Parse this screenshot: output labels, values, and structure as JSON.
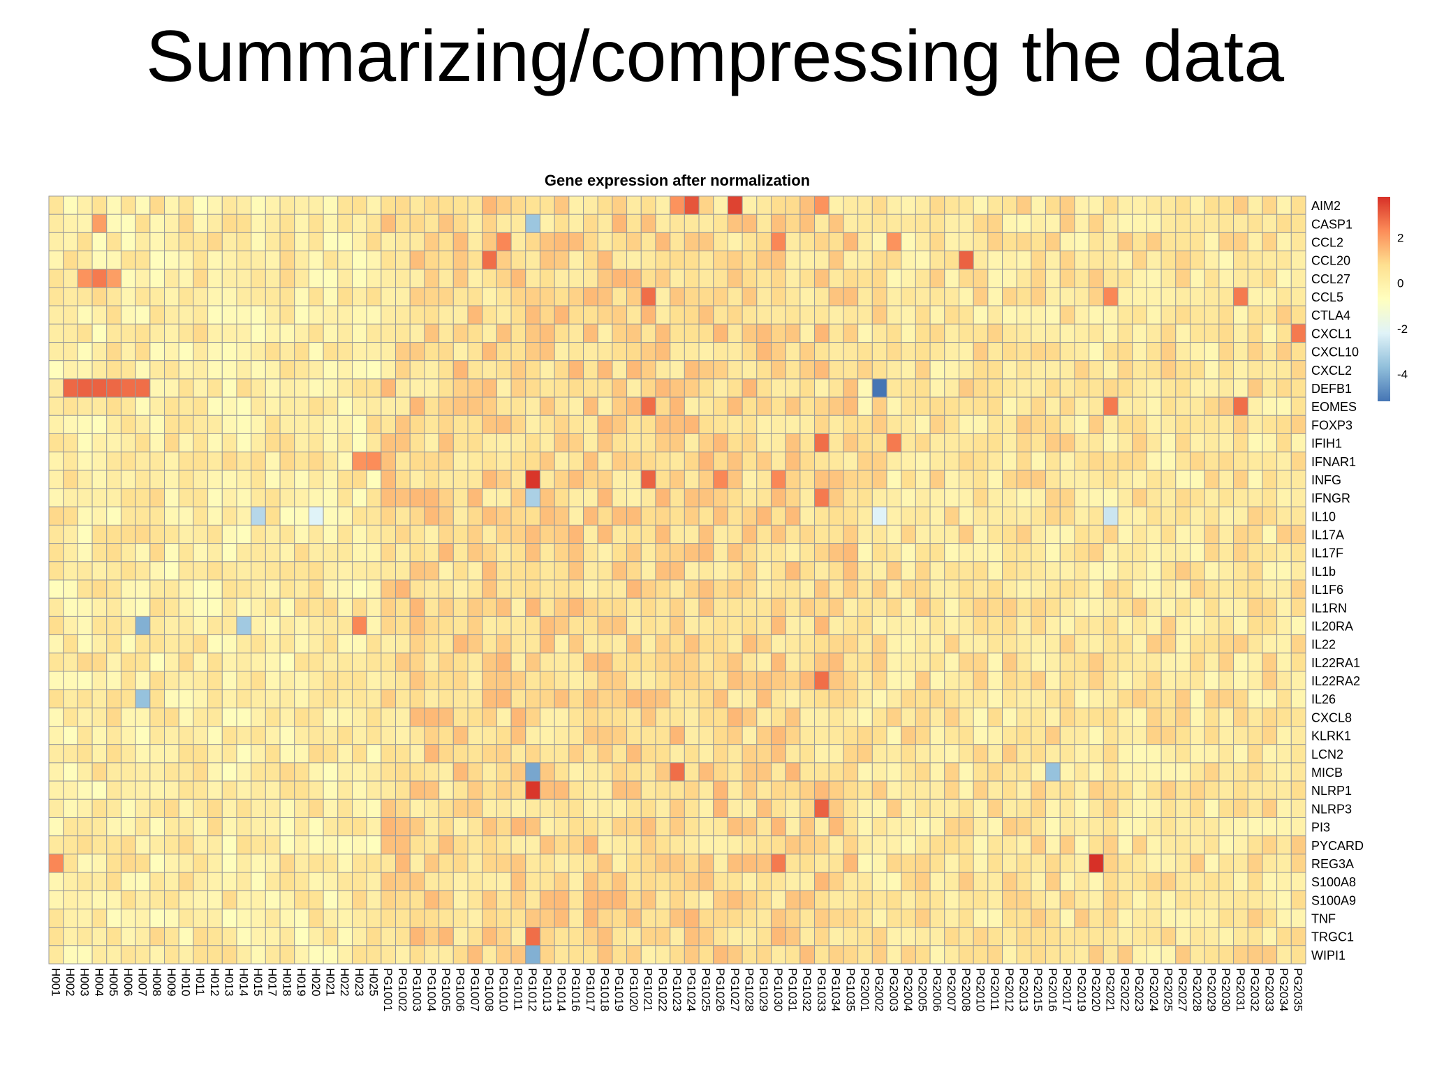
{
  "slide": {
    "title": "Summarizing/compressing the data"
  },
  "chart_data": {
    "type": "heatmap",
    "title": "Gene expression after normalization",
    "rows": [
      "AIM2",
      "CASP1",
      "CCL2",
      "CCL20",
      "CCL27",
      "CCL5",
      "CTLA4",
      "CXCL1",
      "CXCL10",
      "CXCL2",
      "DEFB1",
      "EOMES",
      "FOXP3",
      "IFIH1",
      "IFNAR1",
      "INFG",
      "IFNGR",
      "IL10",
      "IL17A",
      "IL17F",
      "IL1b",
      "IL1F6",
      "IL1RN",
      "IL20RA",
      "IL22",
      "IL22RA1",
      "IL22RA2",
      "IL26",
      "CXCL8",
      "KLRK1",
      "LCN2",
      "MICB",
      "NLRP1",
      "NLRP3",
      "PI3",
      "PYCARD",
      "REG3A",
      "S100A8",
      "S100A9",
      "TNF",
      "TRGC1",
      "WIPI1"
    ],
    "columns": [
      "H001",
      "H002",
      "H003",
      "H004",
      "H005",
      "H006",
      "H007",
      "H008",
      "H009",
      "H010",
      "H011",
      "H012",
      "H013",
      "H014",
      "H015",
      "H017",
      "H018",
      "H019",
      "H020",
      "H021",
      "H022",
      "H023",
      "H025",
      "PG1001",
      "PG1002",
      "PG1003",
      "PG1004",
      "PG1005",
      "PG1006",
      "PG1007",
      "PG1008",
      "PG1010",
      "PG1011",
      "PG1012",
      "PG1013",
      "PG1014",
      "PG1016",
      "PG1017",
      "PG1018",
      "PG1019",
      "PG1020",
      "PG1021",
      "PG1022",
      "PG1023",
      "PG1024",
      "PG1025",
      "PG1026",
      "PG1027",
      "PG1028",
      "PG1029",
      "PG1030",
      "PG1031",
      "PG1032",
      "PG1033",
      "PG1034",
      "PG1035",
      "PG2001",
      "PG2002",
      "PG2003",
      "PG2004",
      "PG2005",
      "PG2006",
      "PG2007",
      "PG2008",
      "PG2010",
      "PG2011",
      "PG2012",
      "PG2013",
      "PG2015",
      "PG2016",
      "PG2017",
      "PG2019",
      "PG2020",
      "PG2021",
      "PG2022",
      "PG2023",
      "PG2024",
      "PG2025",
      "PG2027",
      "PG2028",
      "PG2029",
      "PG2030",
      "PG2031",
      "PG2032",
      "PG2033",
      "PG2034",
      "PG2035"
    ],
    "base_level": 0.4,
    "notable_values": [
      {
        "row": "AIM2",
        "column": "PG1024",
        "value": 3.2
      },
      {
        "row": "AIM2",
        "column": "PG1027",
        "value": 3.5
      },
      {
        "row": "AIM2",
        "column": "PG1023",
        "value": 2.2
      },
      {
        "row": "AIM2",
        "column": "PG1033",
        "value": 2.2
      },
      {
        "row": "CASP1",
        "column": "H004",
        "value": 2.0
      },
      {
        "row": "CASP1",
        "column": "PG1012",
        "value": -3.5
      },
      {
        "row": "CCL2",
        "column": "PG1010",
        "value": 2.4
      },
      {
        "row": "CCL2",
        "column": "PG1030",
        "value": 2.4
      },
      {
        "row": "CCL2",
        "column": "PG2003",
        "value": 2.2
      },
      {
        "row": "CCL20",
        "column": "PG1008",
        "value": 2.8
      },
      {
        "row": "CCL20",
        "column": "PG2008",
        "value": 3.0
      },
      {
        "row": "CCL27",
        "column": "H003",
        "value": 2.2
      },
      {
        "row": "CCL27",
        "column": "H004",
        "value": 2.6
      },
      {
        "row": "CCL27",
        "column": "H005",
        "value": 2.0
      },
      {
        "row": "CCL5",
        "column": "PG1021",
        "value": 2.8
      },
      {
        "row": "CCL5",
        "column": "PG2021",
        "value": 2.4
      },
      {
        "row": "CCL5",
        "column": "PG2031",
        "value": 2.6
      },
      {
        "row": "CXCL1",
        "column": "PG2035",
        "value": 2.6
      },
      {
        "row": "DEFB1",
        "column": "H002",
        "value": 2.9
      },
      {
        "row": "DEFB1",
        "column": "H003",
        "value": 3.0
      },
      {
        "row": "DEFB1",
        "column": "H004",
        "value": 3.0
      },
      {
        "row": "DEFB1",
        "column": "H005",
        "value": 2.9
      },
      {
        "row": "DEFB1",
        "column": "H006",
        "value": 2.8
      },
      {
        "row": "DEFB1",
        "column": "H007",
        "value": 2.8
      },
      {
        "row": "DEFB1",
        "column": "PG2002",
        "value": -5.2
      },
      {
        "row": "EOMES",
        "column": "PG1021",
        "value": 2.8
      },
      {
        "row": "EOMES",
        "column": "PG2021",
        "value": 2.6
      },
      {
        "row": "EOMES",
        "column": "PG2031",
        "value": 2.8
      },
      {
        "row": "IFIH1",
        "column": "PG1033",
        "value": 2.8
      },
      {
        "row": "IFIH1",
        "column": "PG2003",
        "value": 2.6
      },
      {
        "row": "IFNAR1",
        "column": "H023",
        "value": 2.2
      },
      {
        "row": "IFNAR1",
        "column": "H025",
        "value": 2.3
      },
      {
        "row": "INFG",
        "column": "PG1012",
        "value": 3.7
      },
      {
        "row": "INFG",
        "column": "PG1021",
        "value": 3.0
      },
      {
        "row": "INFG",
        "column": "PG1026",
        "value": 2.4
      },
      {
        "row": "INFG",
        "column": "PG1030",
        "value": 2.4
      },
      {
        "row": "IFNGR",
        "column": "PG1012",
        "value": -3.2
      },
      {
        "row": "IFNGR",
        "column": "PG1033",
        "value": 2.6
      },
      {
        "row": "IL10",
        "column": "H015",
        "value": -3.0
      },
      {
        "row": "IL10",
        "column": "H020",
        "value": -2.2
      },
      {
        "row": "IL10",
        "column": "PG2021",
        "value": -2.6
      },
      {
        "row": "IL10",
        "column": "PG2002",
        "value": -2.2
      },
      {
        "row": "IL20RA",
        "column": "H007",
        "value": -4.0
      },
      {
        "row": "IL20RA",
        "column": "H014",
        "value": -3.4
      },
      {
        "row": "IL20RA",
        "column": "H023",
        "value": 2.4
      },
      {
        "row": "IL22RA2",
        "column": "PG1033",
        "value": 2.8
      },
      {
        "row": "IL26",
        "column": "H007",
        "value": -3.6
      },
      {
        "row": "MICB",
        "column": "PG1012",
        "value": -4.2
      },
      {
        "row": "MICB",
        "column": "PG1023",
        "value": 2.8
      },
      {
        "row": "MICB",
        "column": "PG2016",
        "value": -3.6
      },
      {
        "row": "NLRP1",
        "column": "PG1012",
        "value": 3.7
      },
      {
        "row": "NLRP3",
        "column": "PG1033",
        "value": 3.0
      },
      {
        "row": "REG3A",
        "column": "H001",
        "value": 2.4
      },
      {
        "row": "REG3A",
        "column": "PG2020",
        "value": 3.8
      },
      {
        "row": "REG3A",
        "column": "PG1030",
        "value": 2.6
      },
      {
        "row": "TRGC1",
        "column": "PG1012",
        "value": 2.8
      },
      {
        "row": "WIPI1",
        "column": "PG1012",
        "value": -4.0
      }
    ],
    "colorbar": {
      "ticks": [
        "2",
        "0",
        "-2",
        "-4"
      ],
      "range": [
        -5.2,
        3.8
      ],
      "colors": [
        "#4575b4",
        "#91bfdb",
        "#e0f3f8",
        "#ffffbf",
        "#fee090",
        "#fc8d59",
        "#d73027"
      ]
    }
  }
}
